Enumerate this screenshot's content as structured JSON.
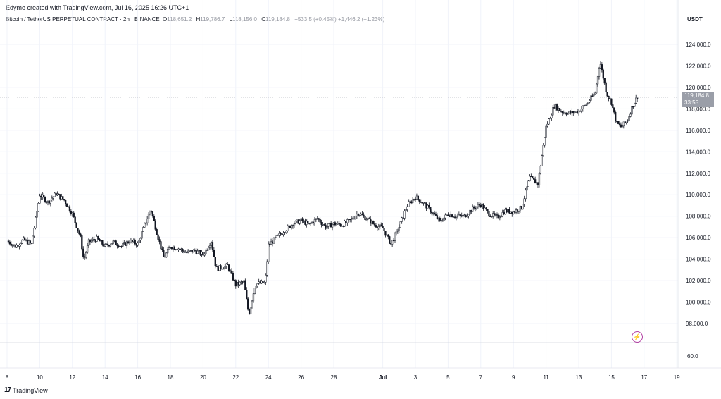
{
  "creator_line": "Edyme created with TradingView.com, Jul 16, 2025 16:26 UTC+1",
  "legend": {
    "symbol": "Bitcoin / TetherUS PERPETUAL CONTRACT · 2h · BINANCE",
    "o_label": "O",
    "o_value": "118,651.2",
    "h_label": "H",
    "h_value": "119,786.7",
    "l_label": "L",
    "l_value": "118,156.0",
    "c_label": "C",
    "c_value": "119,184.8",
    "change": "+533.5 (+0.45%)  +1,446.2 (+1.23%)"
  },
  "unit": "USDT",
  "last_price": {
    "price": "119,184.8",
    "countdown": "33:55"
  },
  "volume_scale_label": "60.0",
  "footer_brand": "TradingView",
  "colors": {
    "candle": "#131722",
    "wick": "#131722",
    "grid": "#f0f3fa",
    "up_candle": "#ffffff"
  },
  "chart_data": {
    "type": "candlestick",
    "title": "Bitcoin / TetherUS PERPETUAL CONTRACT · 2h · BINANCE",
    "ylim": [
      96500,
      125500
    ],
    "y_ticks": [
      {
        "v": 98000,
        "label": "98,000.0"
      },
      {
        "v": 100000,
        "label": "100,000.0"
      },
      {
        "v": 102000,
        "label": "102,000.0"
      },
      {
        "v": 104000,
        "label": "104,000.0"
      },
      {
        "v": 106000,
        "label": "106,000.0"
      },
      {
        "v": 108000,
        "label": "108,000.0"
      },
      {
        "v": 110000,
        "label": "110,000.0"
      },
      {
        "v": 112000,
        "label": "112,000.0"
      },
      {
        "v": 114000,
        "label": "114,000.0"
      },
      {
        "v": 116000,
        "label": "116,000.0"
      },
      {
        "v": 118000,
        "label": "118,000.0"
      },
      {
        "v": 120000,
        "label": "120,000.0"
      },
      {
        "v": 122000,
        "label": "122,000.0"
      },
      {
        "v": 124000,
        "label": "124,000.0"
      }
    ],
    "x_ticks": [
      {
        "day": 0,
        "label": "8"
      },
      {
        "day": 2,
        "label": "10"
      },
      {
        "day": 4,
        "label": "12"
      },
      {
        "day": 6,
        "label": "14"
      },
      {
        "day": 8,
        "label": "16"
      },
      {
        "day": 10,
        "label": "18"
      },
      {
        "day": 12,
        "label": "20"
      },
      {
        "day": 14,
        "label": "22"
      },
      {
        "day": 16,
        "label": "24"
      },
      {
        "day": 18,
        "label": "26"
      },
      {
        "day": 20,
        "label": "28"
      },
      {
        "day": 23,
        "label": "Jul"
      },
      {
        "day": 25,
        "label": "3"
      },
      {
        "day": 27,
        "label": "5"
      },
      {
        "day": 29,
        "label": "7"
      },
      {
        "day": 31,
        "label": "9"
      },
      {
        "day": 33,
        "label": "11"
      },
      {
        "day": 35,
        "label": "13"
      },
      {
        "day": 37,
        "label": "15"
      },
      {
        "day": 39,
        "label": "17"
      },
      {
        "day": 41,
        "label": "19"
      }
    ],
    "path_day_price": [
      [
        0.0,
        105700
      ],
      [
        0.5,
        105200
      ],
      [
        1.0,
        105800
      ],
      [
        1.5,
        105400
      ],
      [
        2.0,
        110000
      ],
      [
        2.5,
        109300
      ],
      [
        3.0,
        110100
      ],
      [
        3.5,
        109500
      ],
      [
        4.0,
        108200
      ],
      [
        4.5,
        106000
      ],
      [
        4.7,
        103900
      ],
      [
        5.0,
        105600
      ],
      [
        5.5,
        105900
      ],
      [
        6.0,
        105200
      ],
      [
        6.5,
        105600
      ],
      [
        7.0,
        105200
      ],
      [
        7.5,
        105700
      ],
      [
        8.0,
        105400
      ],
      [
        8.5,
        107500
      ],
      [
        8.8,
        108700
      ],
      [
        9.2,
        106300
      ],
      [
        9.6,
        104100
      ],
      [
        10.0,
        105200
      ],
      [
        10.5,
        105000
      ],
      [
        11.0,
        104600
      ],
      [
        11.5,
        104800
      ],
      [
        12.0,
        104400
      ],
      [
        12.5,
        105700
      ],
      [
        12.8,
        103100
      ],
      [
        13.5,
        103400
      ],
      [
        14.0,
        101600
      ],
      [
        14.5,
        101900
      ],
      [
        14.8,
        98800
      ],
      [
        15.2,
        101700
      ],
      [
        15.8,
        101800
      ],
      [
        16.0,
        105300
      ],
      [
        16.5,
        106000
      ],
      [
        17.0,
        106700
      ],
      [
        17.5,
        107300
      ],
      [
        18.0,
        107600
      ],
      [
        18.5,
        107200
      ],
      [
        19.0,
        107800
      ],
      [
        19.5,
        107000
      ],
      [
        20.0,
        107300
      ],
      [
        20.5,
        107200
      ],
      [
        21.0,
        107600
      ],
      [
        21.5,
        108300
      ],
      [
        22.0,
        107800
      ],
      [
        22.5,
        107200
      ],
      [
        23.0,
        106900
      ],
      [
        23.5,
        105400
      ],
      [
        24.0,
        107000
      ],
      [
        24.5,
        109000
      ],
      [
        25.0,
        109800
      ],
      [
        25.5,
        109200
      ],
      [
        26.0,
        108400
      ],
      [
        26.5,
        107500
      ],
      [
        27.0,
        108200
      ],
      [
        27.5,
        108000
      ],
      [
        28.0,
        108000
      ],
      [
        28.5,
        108700
      ],
      [
        29.0,
        109100
      ],
      [
        29.5,
        108200
      ],
      [
        30.0,
        107900
      ],
      [
        30.5,
        108500
      ],
      [
        31.0,
        108400
      ],
      [
        31.5,
        108800
      ],
      [
        32.0,
        111600
      ],
      [
        32.5,
        111000
      ],
      [
        33.0,
        116300
      ],
      [
        33.5,
        118300
      ],
      [
        34.0,
        117700
      ],
      [
        34.5,
        117600
      ],
      [
        35.0,
        117800
      ],
      [
        35.5,
        118500
      ],
      [
        36.0,
        119500
      ],
      [
        36.3,
        122400
      ],
      [
        36.7,
        119500
      ],
      [
        37.0,
        118600
      ],
      [
        37.3,
        116700
      ],
      [
        37.6,
        116300
      ],
      [
        38.0,
        117000
      ],
      [
        38.3,
        118300
      ],
      [
        38.6,
        119185
      ]
    ]
  }
}
